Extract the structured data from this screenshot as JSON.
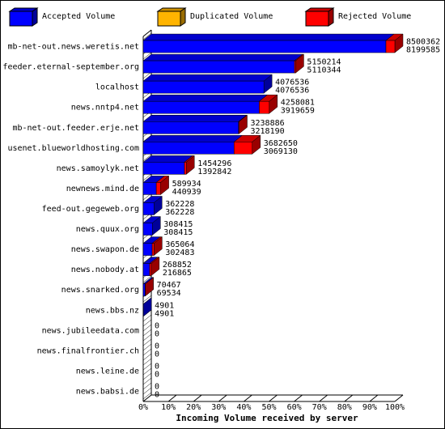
{
  "chart_data": {
    "type": "bar3d",
    "xlabel": "Incoming Volume received by server",
    "categories": [
      "mb-net-out.news.weretis.net",
      "feeder.eternal-september.org",
      "localhost",
      "news.nntp4.net",
      "mb-net-out.feeder.erje.net",
      "usenet.blueworldhosting.com",
      "news.samoylyk.net",
      "newnews.mind.de",
      "feed-out.gegeweb.org",
      "news.quux.org",
      "news.swapon.de",
      "news.nobody.at",
      "news.snarked.org",
      "news.bbs.nz",
      "news.jubileedata.com",
      "news.finalfrontier.ch",
      "news.leine.de",
      "news.babsi.de"
    ],
    "totals": [
      8500362,
      5150214,
      4076536,
      4258081,
      3238886,
      3682650,
      1454296,
      589934,
      362228,
      308415,
      365064,
      268852,
      70467,
      4901,
      0,
      0,
      0,
      0
    ],
    "series": [
      {
        "name": "Accepted Volume",
        "color": "#0000ff",
        "values": [
          8199585,
          5110344,
          4076536,
          3919659,
          3218190,
          3069130,
          1392842,
          440939,
          362228,
          308415,
          302483,
          216865,
          69534,
          4901,
          0,
          0,
          0,
          0
        ]
      },
      {
        "name": "Duplicated Volume",
        "color": "#ffb400",
        "values": [
          0,
          0,
          0,
          0,
          0,
          0,
          0,
          0,
          0,
          0,
          0,
          0,
          0,
          0,
          0,
          0,
          0,
          0
        ]
      },
      {
        "name": "Rejected Volume",
        "color": "#ff0000",
        "values": [
          300777,
          39870,
          0,
          338422,
          20696,
          613520,
          61454,
          148995,
          0,
          0,
          62581,
          51987,
          933,
          0,
          0,
          0,
          0,
          0
        ]
      }
    ],
    "xlim": [
      0,
      8500362
    ],
    "xticks": [
      {
        "value": 0,
        "label": "0%"
      },
      {
        "value": 850036.2,
        "label": "10%"
      },
      {
        "value": 1700072.4,
        "label": "20%"
      },
      {
        "value": 2550108.6,
        "label": "30%"
      },
      {
        "value": 3400144.8,
        "label": "40%"
      },
      {
        "value": 4250181,
        "label": "50%"
      },
      {
        "value": 5100217.2,
        "label": "60%"
      },
      {
        "value": 5950253.4,
        "label": "70%"
      },
      {
        "value": 6800289.6,
        "label": "80%"
      },
      {
        "value": 7650325.8,
        "label": "90%"
      },
      {
        "value": 8500362,
        "label": "100%"
      }
    ]
  }
}
